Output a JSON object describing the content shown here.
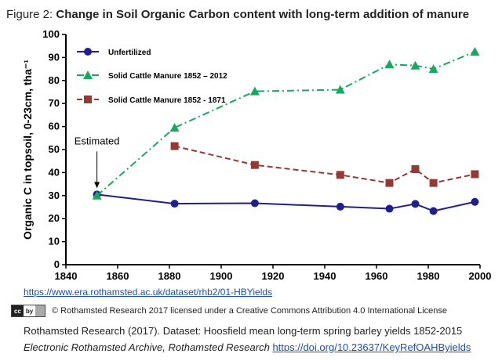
{
  "figure": {
    "prefix": "Figure 2:",
    "title": "Change in Soil Organic Carbon content with long-term addition of manure"
  },
  "chart_data": {
    "type": "line",
    "ylabel": "Organic C in topsoil, 0-23cm, tha⁻¹",
    "xlabel": "",
    "xlim": [
      1840,
      2000
    ],
    "ylim": [
      0,
      100
    ],
    "x_ticks": [
      1840,
      1860,
      1880,
      1900,
      1920,
      1940,
      1960,
      1980,
      2000
    ],
    "y_ticks": [
      0,
      10,
      20,
      30,
      40,
      50,
      60,
      70,
      80,
      90,
      100
    ],
    "legend_position": "top-left",
    "series": [
      {
        "name": "Unfertilized",
        "color": "#1f1f8f",
        "marker": "circle",
        "line": "solid",
        "x": [
          1852,
          1882,
          1913,
          1946,
          1965,
          1975,
          1982,
          1998
        ],
        "y": [
          30.5,
          26.5,
          26.7,
          25.2,
          24.3,
          26.4,
          23.3,
          27.3
        ]
      },
      {
        "name": "Solid Cattle Manure 1852 – 2012",
        "color": "#19a860",
        "marker": "triangle",
        "line": "dash-dot",
        "x": [
          1852,
          1882,
          1913,
          1946,
          1965,
          1975,
          1982,
          1998
        ],
        "y": [
          30.0,
          59.5,
          75.3,
          76.0,
          87.0,
          86.5,
          85.0,
          92.5
        ]
      },
      {
        "name": "Solid Cattle Manure 1852 - 1871",
        "color": "#943a35",
        "marker": "square",
        "line": "dashed",
        "x": [
          1882,
          1913,
          1946,
          1965,
          1975,
          1982,
          1998
        ],
        "y": [
          51.5,
          43.3,
          39.0,
          35.5,
          41.5,
          35.5,
          39.3
        ]
      }
    ],
    "annotation": {
      "text": "Estimated",
      "x": 1852,
      "y": 30.5
    }
  },
  "link": "https://www.era.rothamsted.ac.uk/dataset/rhb2/01-HBYields",
  "license": {
    "badge": "cc by",
    "text": "© Rothamsted Research 2017 licensed under a Creative Commons Attribution 4.0 International License"
  },
  "citation": {
    "line1": "Rothamsted Research (2017). Dataset: Hoosfield mean long-term spring barley yields 1852-2015",
    "line2_prefix": "Electronic Rothamsted Archive, Rothamsted Research ",
    "doi": "https://doi.org/10.23637/KeyRefOAHByields"
  }
}
